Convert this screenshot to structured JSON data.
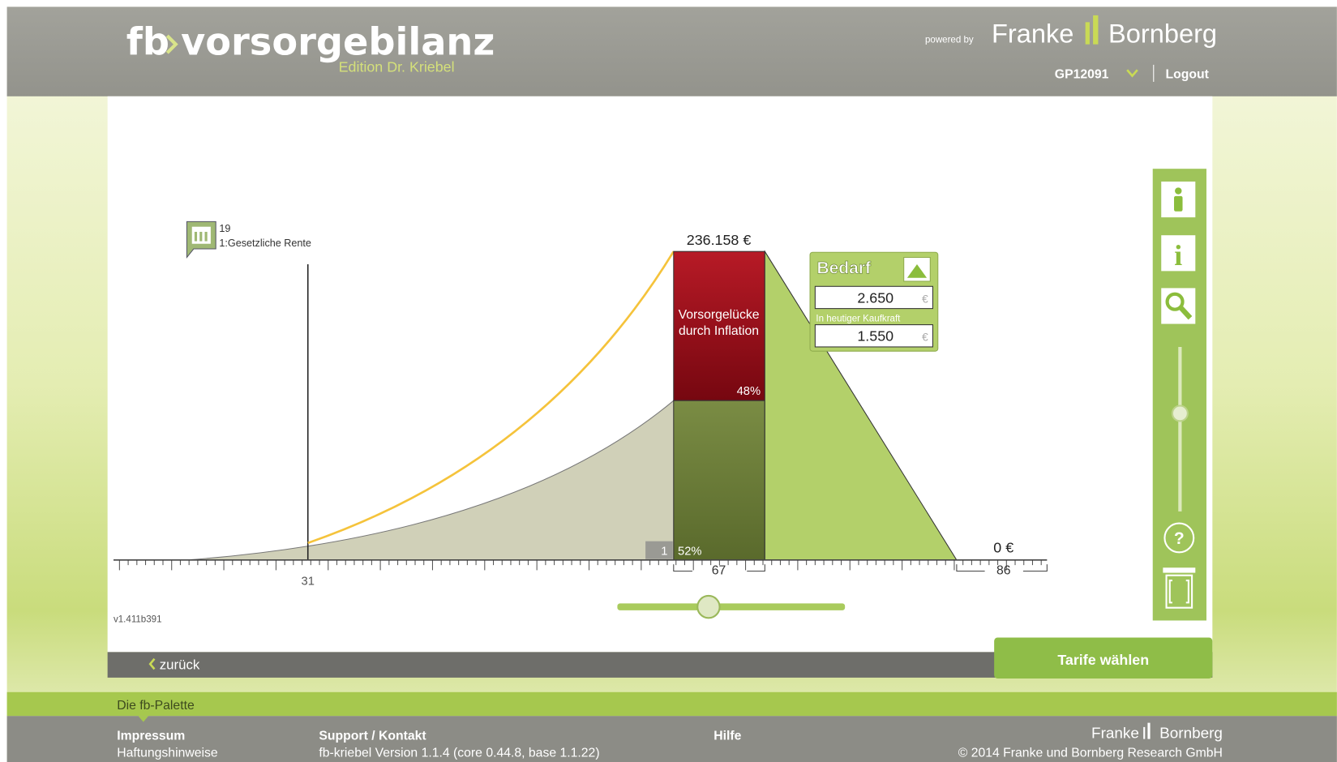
{
  "header": {
    "logo_prefix": "fb",
    "logo_name": "vorsorgebilanz",
    "edition": "Edition Dr. Kriebel",
    "powered_by": "powered by",
    "brand_left": "Franke",
    "brand_right": "Bornberg",
    "user": "GP12091",
    "logout": "Logout"
  },
  "chart": {
    "marker_number": "19",
    "marker_label": "1:Gesetzliche Rente",
    "axis_label": "31",
    "peak_label": "236.158 €",
    "gap_label": [
      "Vorsorgelücke",
      "durch Inflation"
    ],
    "gap_percent": "48%",
    "covered_index": "1",
    "covered_percent": "52%",
    "start_age": "67",
    "end_age": "86",
    "end_value": "0 €",
    "version": "v1.411b391"
  },
  "bedarf": {
    "title": "Bedarf",
    "value": "2.650",
    "currency": "€",
    "kaufkraft_label": "In heutiger Kaufkraft",
    "kaufkraft_value": "1.550",
    "kaufkraft_currency": "€"
  },
  "nav": {
    "back": "zurück",
    "next": "Tarife wählen"
  },
  "footer": {
    "palette": "Die fb-Palette",
    "impressum": "Impressum",
    "haftung": "Haftungshinweise",
    "support": "Support / Kontakt",
    "version": "fb-kriebel Version 1.1.4 (core 0.44.8, base 1.1.22)",
    "hilfe": "Hilfe",
    "brand_left": "Franke",
    "brand_right": "Bornberg",
    "copyright": "© 2014 Franke und Bornberg Research GmbH"
  }
}
